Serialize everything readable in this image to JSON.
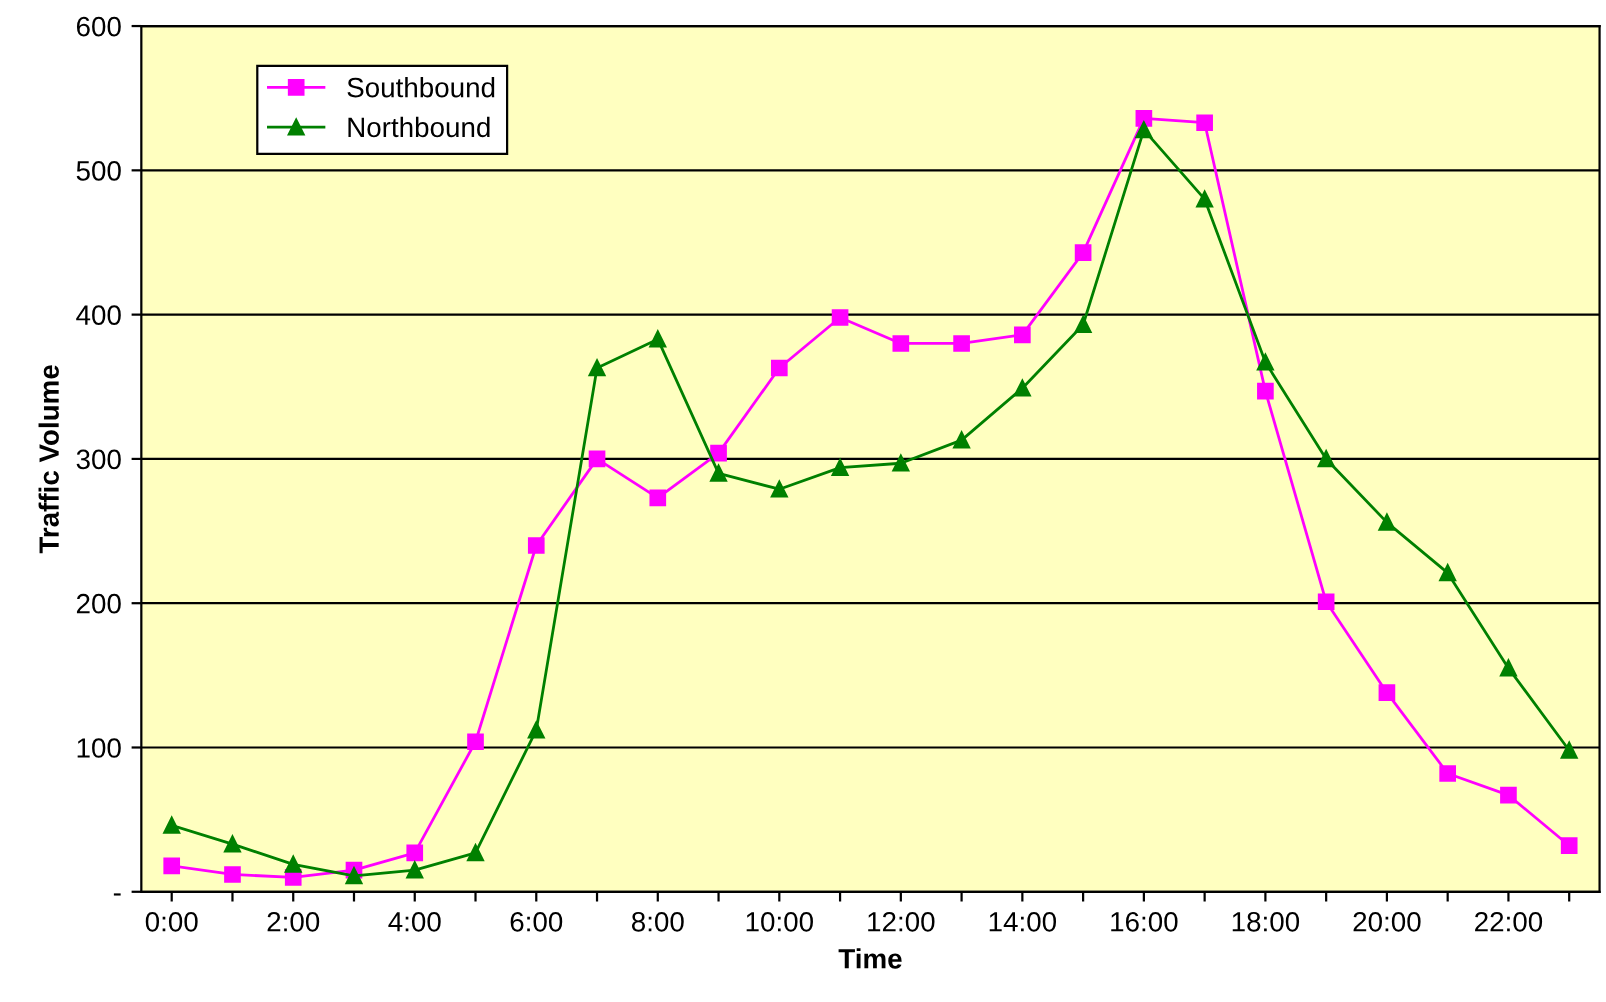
{
  "chart_data": {
    "type": "line",
    "xlabel": "Time",
    "ylabel": "Traffic Volume",
    "categories": [
      "0:00",
      null,
      "2:00",
      null,
      "4:00",
      null,
      "6:00",
      null,
      "8:00",
      null,
      "10:00",
      null,
      "12:00",
      null,
      "14:00",
      null,
      "16:00",
      null,
      "18:00",
      null,
      "20:00",
      null,
      "22:00",
      null
    ],
    "series": [
      {
        "name": "Southbound",
        "color": "#ff00ff",
        "marker": "square",
        "values": [
          18,
          12,
          10,
          15,
          27,
          104,
          240,
          300,
          273,
          304,
          363,
          398,
          380,
          380,
          386,
          443,
          536,
          533,
          347,
          201,
          138,
          82,
          67,
          32
        ]
      },
      {
        "name": "Northbound",
        "color": "#008000",
        "marker": "triangle",
        "values": [
          46,
          33,
          19,
          11,
          15,
          27,
          112,
          363,
          383,
          290,
          279,
          294,
          297,
          313,
          349,
          393,
          528,
          480,
          367,
          300,
          256,
          221,
          155,
          98
        ]
      }
    ],
    "ylim": [
      0,
      600
    ],
    "yticks": [
      {
        "value": 0,
        "label": "-"
      },
      100,
      200,
      300,
      400,
      500,
      600
    ],
    "grid": "y",
    "legend": "top left"
  }
}
